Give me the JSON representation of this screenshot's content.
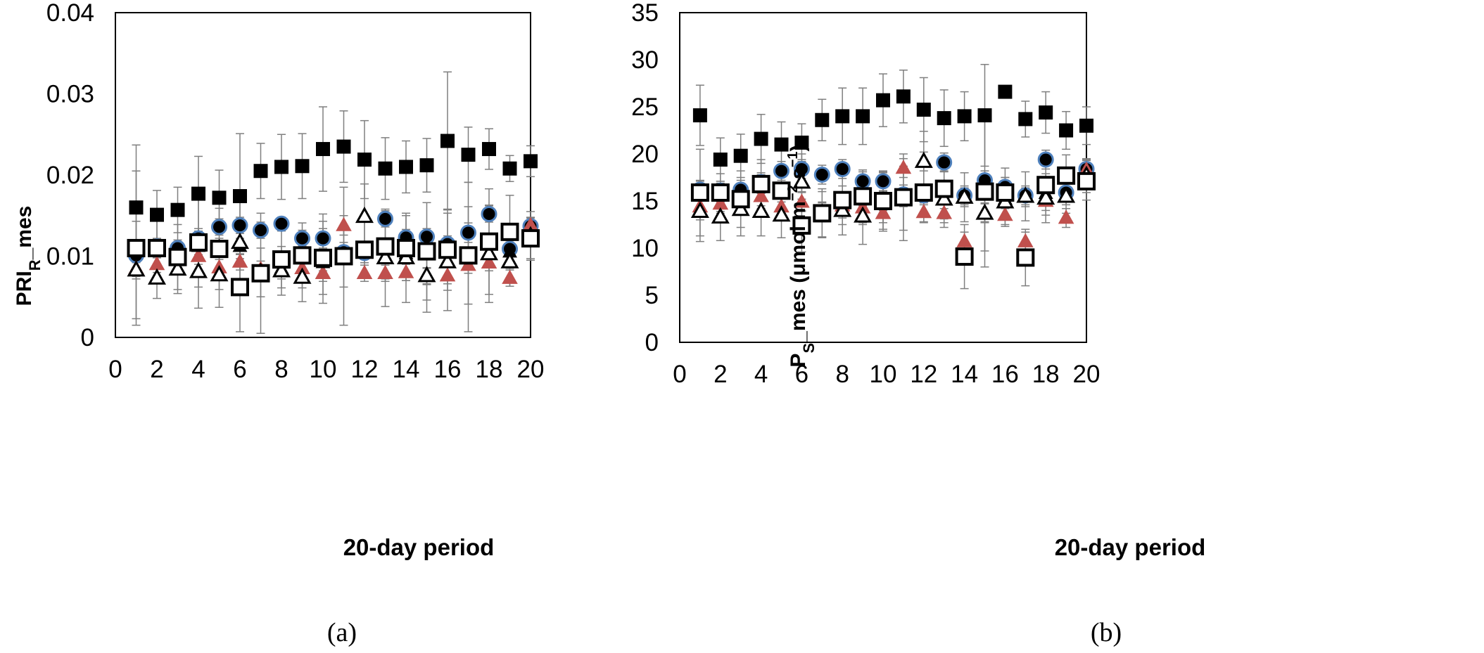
{
  "colors": {
    "frame": "#000000",
    "errorbar": "#7f7f7f",
    "circle_outline": "#4f81bd",
    "red_triangle": "#c0504d"
  },
  "chart_data": [
    {
      "id": "a",
      "type": "scatter",
      "panel_label": "(a)",
      "xlabel": "20-day period",
      "ylabel_main": "PRI",
      "ylabel_sub": "R",
      "ylabel_suffix": "_mes",
      "xlim": [
        0,
        20
      ],
      "ylim": [
        0,
        0.04
      ],
      "xticks": [
        "0",
        "2",
        "4",
        "6",
        "8",
        "10",
        "12",
        "14",
        "16",
        "18",
        "20"
      ],
      "yticks": [
        "0",
        "0.01",
        "0.02",
        "0.03",
        "0.04"
      ],
      "x": [
        1,
        2,
        3,
        4,
        5,
        6,
        7,
        8,
        9,
        10,
        11,
        12,
        13,
        14,
        15,
        16,
        17,
        18,
        19,
        20
      ],
      "series": [
        {
          "name": "filled square",
          "marker": "square-filled",
          "values": [
            0.016,
            0.0151,
            0.0157,
            0.0177,
            0.0172,
            0.0174,
            0.0205,
            0.021,
            0.0211,
            0.0232,
            0.0235,
            0.0219,
            0.0208,
            0.021,
            0.0212,
            0.0242,
            0.0225,
            0.0232,
            0.0208,
            0.0217
          ],
          "errors": [
            0.0077,
            0.003,
            0.0028,
            0.0046,
            0.0034,
            0.0077,
            0.0034,
            0.004,
            0.004,
            0.0052,
            0.0044,
            0.0048,
            0.0038,
            0.0032,
            0.0033,
            0.0085,
            0.0034,
            0.0025,
            0.0016,
            0.0019
          ]
        },
        {
          "name": "filled circle",
          "marker": "circle-filled",
          "values": [
            0.0101,
            0.0112,
            0.011,
            0.0122,
            0.0136,
            0.0138,
            0.0132,
            0.014,
            0.0122,
            0.0122,
            0.0105,
            0.0104,
            0.0146,
            0.0123,
            0.0124,
            0.0115,
            0.0129,
            0.0152,
            0.0109,
            0.0137
          ],
          "errors": [
            0.0015,
            0.001,
            0.001,
            0.0012,
            0.001,
            0.001,
            0.001,
            0.0008,
            0.001,
            0.0012,
            0.0012,
            0.0012,
            0.001,
            0.001,
            0.001,
            0.001,
            0.0012,
            0.001,
            0.001,
            0.001
          ]
        },
        {
          "name": "red triangle",
          "marker": "triangle-red",
          "values": [
            0.0085,
            0.009,
            0.0095,
            0.01,
            0.0086,
            0.0093,
            0.0084,
            0.0082,
            0.0085,
            0.0079,
            0.0138,
            0.0079,
            0.0079,
            0.008,
            0.0076,
            0.0076,
            0.0089,
            0.0092,
            0.0073,
            0.0138
          ],
          "errors": [
            0.001,
            0.001,
            0.001,
            0.001,
            0.001,
            0.001,
            0.001,
            0.001,
            0.001,
            0.001,
            0.0012,
            0.001,
            0.001,
            0.001,
            0.001,
            0.001,
            0.001,
            0.001,
            0.001,
            0.001
          ]
        },
        {
          "name": "filled triangle",
          "marker": "triangle-filled",
          "values": [
            0.0082,
            0.0108,
            0.0101,
            0.0112,
            0.0112,
            0.0112,
            0.0079,
            0.0085,
            0.0103,
            0.0092,
            0.01,
            0.0106,
            0.0108,
            0.0103,
            0.0075,
            0.011,
            0.0101,
            0.0102,
            0.0105,
            0.0125
          ],
          "errors": [
            0.001,
            0.001,
            0.001,
            0.001,
            0.001,
            0.001,
            0.001,
            0.001,
            0.001,
            0.001,
            0.001,
            0.001,
            0.001,
            0.001,
            0.001,
            0.001,
            0.001,
            0.001,
            0.001,
            0.001
          ]
        },
        {
          "name": "open triangle",
          "marker": "triangle-open",
          "values": [
            0.0083,
            0.0073,
            0.0084,
            0.0081,
            0.0077,
            0.0117,
            0.008,
            0.0082,
            0.0074,
            0.0097,
            0.0097,
            0.0149,
            0.0098,
            0.0098,
            0.0076,
            0.0093,
            0.0099,
            0.0103,
            0.0093,
            0.0125
          ],
          "errors": [
            0.006,
            0.0025,
            0.003,
            0.0045,
            0.004,
            0.005,
            0.003,
            0.003,
            0.003,
            0.0055,
            0.0035,
            0.004,
            0.006,
            0.0055,
            0.0045,
            0.006,
            0.0092,
            0.006,
            0.003,
            0.003
          ]
        },
        {
          "name": "open square",
          "marker": "square-open",
          "values": [
            0.011,
            0.011,
            0.0099,
            0.0117,
            0.0109,
            0.0062,
            0.0079,
            0.0096,
            0.0101,
            0.0098,
            0.01,
            0.0108,
            0.0112,
            0.011,
            0.0106,
            0.0108,
            0.0101,
            0.0118,
            0.013,
            0.0122
          ],
          "errors": [
            0.0095,
            0.0035,
            0.004,
            0.0055,
            0.005,
            0.0055,
            0.0074,
            0.0035,
            0.004,
            0.0045,
            0.0085,
            0.0035,
            0.004,
            0.004,
            0.006,
            0.005,
            0.006,
            0.0065,
            0.0045,
            0.0025
          ]
        }
      ]
    },
    {
      "id": "b",
      "type": "scatter",
      "panel_label": "(b)",
      "xlabel": "20-day period",
      "ylabel_main": "P",
      "ylabel_sub": "S",
      "ylabel_suffix": "_mes (μmol m",
      "ylabel_sup1": "−2",
      "ylabel_mid": " s",
      "ylabel_sup2": "−1",
      "ylabel_end": ")",
      "xlim": [
        0,
        20
      ],
      "ylim": [
        0,
        35
      ],
      "xticks": [
        "0",
        "2",
        "4",
        "6",
        "8",
        "10",
        "12",
        "14",
        "16",
        "18",
        "20"
      ],
      "yticks": [
        "0",
        "5",
        "10",
        "15",
        "20",
        "25",
        "30",
        "35"
      ],
      "x": [
        1,
        2,
        3,
        4,
        5,
        6,
        7,
        8,
        9,
        10,
        11,
        12,
        13,
        14,
        15,
        16,
        17,
        18,
        19,
        20
      ],
      "series": [
        {
          "name": "filled square",
          "marker": "square-filled",
          "values": [
            24.1,
            19.4,
            19.8,
            21.6,
            21.0,
            21.2,
            23.6,
            24.0,
            24.0,
            25.7,
            26.1,
            24.7,
            23.8,
            24.0,
            24.1,
            26.6,
            23.7,
            24.4,
            22.5,
            23.0
          ],
          "errors": [
            3.2,
            2.3,
            2.3,
            2.6,
            2.4,
            2.0,
            2.2,
            3.0,
            3.0,
            2.8,
            2.8,
            3.4,
            3.0,
            2.6,
            5.4,
            0.5,
            1.9,
            2.2,
            2.0,
            2.0
          ]
        },
        {
          "name": "filled circle",
          "marker": "circle-filled",
          "values": [
            16.2,
            16.1,
            16.2,
            17.0,
            18.2,
            18.4,
            17.8,
            18.4,
            17.1,
            17.1,
            15.7,
            15.6,
            19.1,
            15.6,
            17.2,
            16.5,
            15.6,
            19.4,
            15.9,
            18.4
          ],
          "errors": [
            1.0,
            1.0,
            1.0,
            1.0,
            1.0,
            1.0,
            1.0,
            1.0,
            1.0,
            1.0,
            1.0,
            1.0,
            1.0,
            1.0,
            1.0,
            1.0,
            1.0,
            1.0,
            1.0,
            1.0
          ]
        },
        {
          "name": "red triangle",
          "marker": "triangle-red",
          "values": [
            14.4,
            14.7,
            15.2,
            15.5,
            14.4,
            14.9,
            13.8,
            14.5,
            14.3,
            13.7,
            18.5,
            13.8,
            13.7,
            10.7,
            13.8,
            13.5,
            10.7,
            15.0,
            13.2,
            18.3
          ],
          "errors": [
            1.0,
            1.0,
            1.0,
            1.0,
            1.0,
            1.0,
            1.0,
            1.0,
            1.0,
            1.0,
            1.0,
            1.0,
            1.0,
            1.0,
            1.0,
            1.0,
            1.0,
            1.0,
            1.0,
            1.0
          ]
        },
        {
          "name": "filled triangle",
          "marker": "triangle-filled",
          "values": [
            14.0,
            15.9,
            15.7,
            16.8,
            15.9,
            17.0,
            13.9,
            14.2,
            13.5,
            15.0,
            15.4,
            19.2,
            15.2,
            15.4,
            13.7,
            15.2,
            15.4,
            15.8,
            15.6,
            17.7
          ],
          "errors": [
            1.0,
            1.0,
            1.0,
            1.0,
            1.0,
            1.0,
            1.0,
            1.0,
            1.0,
            1.0,
            1.0,
            1.0,
            1.0,
            1.0,
            1.0,
            1.0,
            1.0,
            1.0,
            1.0,
            1.0
          ]
        },
        {
          "name": "open triangle",
          "marker": "triangle-open",
          "values": [
            13.9,
            13.3,
            14.1,
            13.9,
            13.5,
            17.0,
            13.6,
            14.0,
            13.4,
            15.0,
            15.3,
            19.2,
            15.2,
            15.4,
            13.7,
            14.9,
            15.5,
            15.3,
            15.5,
            17.7
          ],
          "errors": [
            3.2,
            2.5,
            2.8,
            2.6,
            2.4,
            3.0,
            2.4,
            2.6,
            3.0,
            3.0,
            3.4,
            3.2,
            3.0,
            2.6,
            4.0,
            2.6,
            2.6,
            2.6,
            1.8,
            1.8
          ]
        },
        {
          "name": "open square",
          "marker": "square-open",
          "values": [
            15.9,
            15.9,
            15.2,
            16.8,
            16.1,
            12.4,
            13.7,
            15.1,
            15.5,
            15.0,
            15.4,
            15.9,
            16.3,
            9.1,
            16.0,
            15.9,
            9.0,
            16.7,
            17.7,
            17.1
          ],
          "errors": [
            4.6,
            2.0,
            3.0,
            2.6,
            2.0,
            2.8,
            2.6,
            2.6,
            2.8,
            3.2,
            4.6,
            3.2,
            3.2,
            3.4,
            8.0,
            2.6,
            3.0,
            3.2,
            2.2,
            2.0
          ]
        }
      ]
    }
  ]
}
